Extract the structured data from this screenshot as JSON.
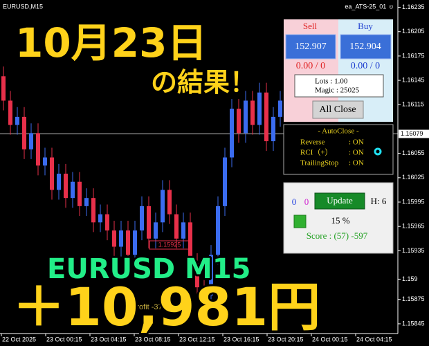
{
  "window": {
    "symbol": "EURUSD,M15",
    "expert": "ea_ATS-25_01 ☺"
  },
  "price_axis": {
    "ylim": [
      1.15833,
      1.16244
    ],
    "yticks": [
      1.16235,
      1.16205,
      1.16175,
      1.16145,
      1.16115,
      1.16055,
      1.16025,
      1.15995,
      1.15965,
      1.15935,
      1.159,
      1.15875,
      1.15845
    ],
    "current": 1.16079
  },
  "time_labels": [
    "22 Oct 2025",
    "23 Oct 00:15",
    "23 Oct 04:15",
    "23 Oct 08:15",
    "23 Oct 12:15",
    "23 Oct 16:15",
    "23 Oct 20:15",
    "24 Oct 00:15",
    "24 Oct 04:15"
  ],
  "candle_colors": {
    "up": "#3b6cf0",
    "down": "#e8304a"
  },
  "candles": [
    [
      1.1615,
      1.16162,
      1.16108,
      1.1612
    ],
    [
      1.1612,
      1.16132,
      1.16078,
      1.1609
    ],
    [
      1.1609,
      1.16112,
      1.16078,
      1.161
    ],
    [
      1.161,
      1.16112,
      1.16048,
      1.1606
    ],
    [
      1.1606,
      1.16092,
      1.16048,
      1.1608
    ],
    [
      1.1608,
      1.16092,
      1.16028,
      1.1604
    ],
    [
      1.1604,
      1.16062,
      1.16028,
      1.1605
    ],
    [
      1.1605,
      1.16062,
      1.15998,
      1.1601
    ],
    [
      1.1601,
      1.16042,
      1.15998,
      1.1603
    ],
    [
      1.1603,
      1.16042,
      1.15988,
      1.16
    ],
    [
      1.16,
      1.16032,
      1.15988,
      1.1602
    ],
    [
      1.1602,
      1.16032,
      1.15978,
      1.1599
    ],
    [
      1.1599,
      1.16012,
      1.15978,
      1.16
    ],
    [
      1.16,
      1.16012,
      1.15958,
      1.1597
    ],
    [
      1.1597,
      1.15992,
      1.15958,
      1.1598
    ],
    [
      1.1598,
      1.15992,
      1.15948,
      1.1596
    ],
    [
      1.1596,
      1.15972,
      1.15928,
      1.1594
    ],
    [
      1.1594,
      1.15972,
      1.15928,
      1.1596
    ],
    [
      1.1596,
      1.15972,
      1.15918,
      1.1593
    ],
    [
      1.1593,
      1.15972,
      1.15918,
      1.1596
    ],
    [
      1.1596,
      1.16002,
      1.15948,
      1.1599
    ],
    [
      1.1599,
      1.16002,
      1.15938,
      1.1595
    ],
    [
      1.1595,
      1.15982,
      1.15938,
      1.1597
    ],
    [
      1.1597,
      1.16022,
      1.15958,
      1.1601
    ],
    [
      1.1601,
      1.16022,
      1.15968,
      1.1598
    ],
    [
      1.1598,
      1.15992,
      1.15938,
      1.1595
    ],
    [
      1.1595,
      1.15982,
      1.15938,
      1.1597
    ],
    [
      1.1597,
      1.15982,
      1.15908,
      1.1592
    ],
    [
      1.1592,
      1.15932,
      1.15878,
      1.1589
    ],
    [
      1.1589,
      1.15902,
      1.15868,
      1.1588
    ],
    [
      1.1588,
      1.15942,
      1.15868,
      1.1593
    ],
    [
      1.1593,
      1.16002,
      1.15918,
      1.1599
    ],
    [
      1.1599,
      1.16062,
      1.15978,
      1.1605
    ],
    [
      1.1605,
      1.16122,
      1.16038,
      1.1611
    ],
    [
      1.1611,
      1.16122,
      1.16068,
      1.1608
    ],
    [
      1.1608,
      1.16132,
      1.16068,
      1.1612
    ],
    [
      1.1612,
      1.16132,
      1.16078,
      1.1609
    ],
    [
      1.1609,
      1.16142,
      1.16078,
      1.1613
    ],
    [
      1.1613,
      1.16142,
      1.16058,
      1.1607
    ],
    [
      1.1607,
      1.16112,
      1.16058,
      1.161
    ],
    [
      1.161,
      1.16132,
      1.16088,
      1.1612
    ]
  ],
  "chart_labels": {
    "level": "1.15925",
    "profit": "Profit -37.5"
  },
  "overlay": {
    "date": "10月23日",
    "result": "の結果！",
    "pair": "EURUSD M15",
    "profit": "＋10,981円"
  },
  "panel": {
    "sell": "Sell",
    "buy": "Buy",
    "sell_price": "152.907",
    "buy_price": "152.904",
    "sell_pl": "0.00 / 0",
    "buy_pl": "0.00 / 0",
    "lots": "Lots : 1.00",
    "magic": "Magic : 25025",
    "all_close": "All Close",
    "autoclose": {
      "title": "- AutoClose -",
      "rows": [
        [
          "Reverse",
          ": ON"
        ],
        [
          "RCI（+）",
          ": ON"
        ],
        [
          "TrailingStop",
          ": ON"
        ]
      ]
    },
    "count_a": "0",
    "count_b": "0",
    "update": "Update",
    "h": "H: 6",
    "percent": "15 %",
    "score": "Score : (57) -597"
  }
}
